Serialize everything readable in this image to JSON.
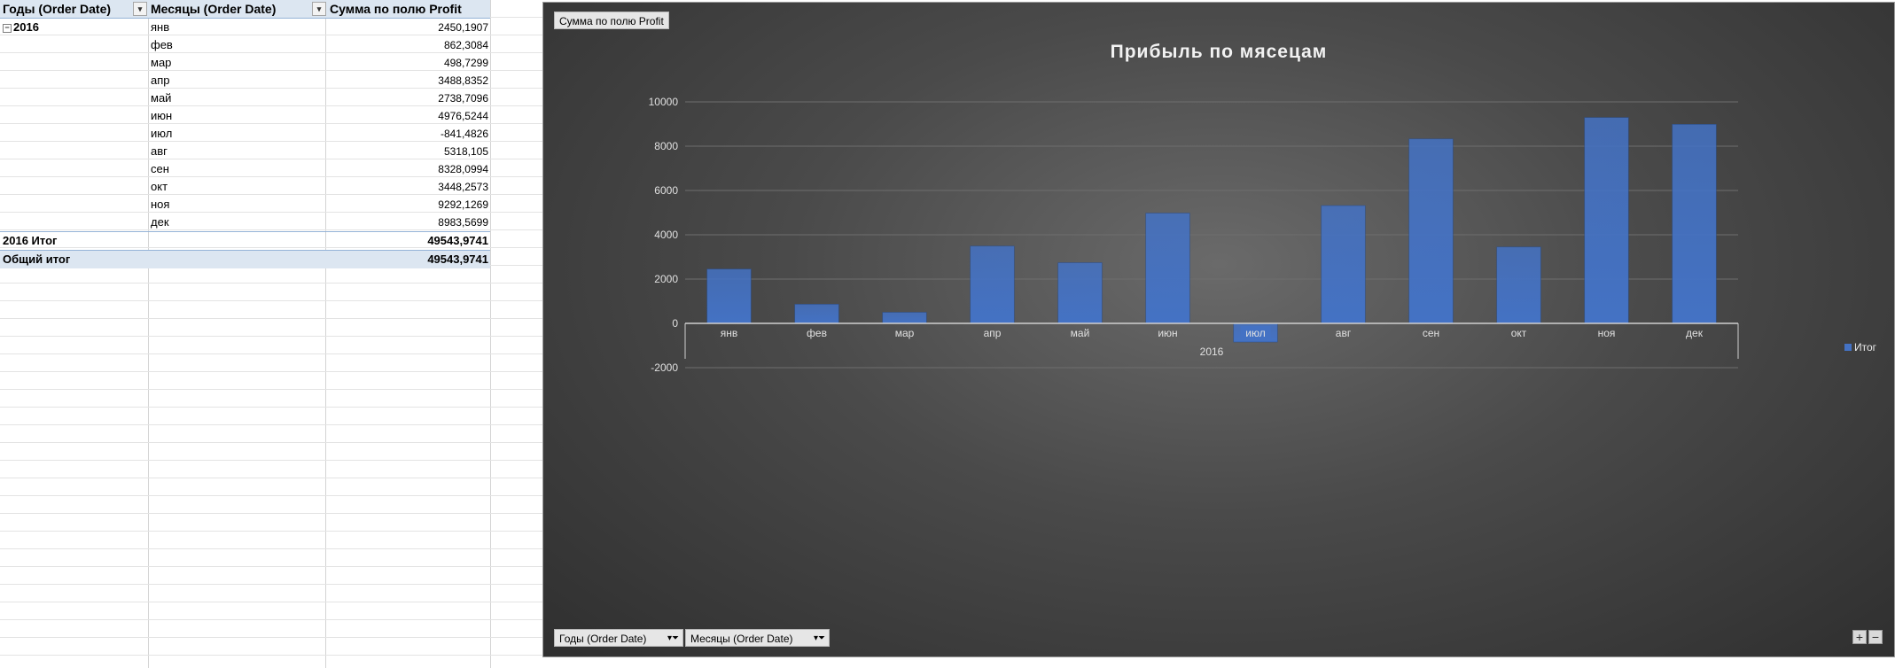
{
  "pivot": {
    "headers": {
      "years": "Годы (Order Date)",
      "months": "Месяцы (Order Date)",
      "sum": "Сумма по полю Profit"
    },
    "year": "2016",
    "rows": [
      {
        "month": "янв",
        "value": "2450,1907"
      },
      {
        "month": "фев",
        "value": "862,3084"
      },
      {
        "month": "мар",
        "value": "498,7299"
      },
      {
        "month": "апр",
        "value": "3488,8352"
      },
      {
        "month": "май",
        "value": "2738,7096"
      },
      {
        "month": "июн",
        "value": "4976,5244"
      },
      {
        "month": "июл",
        "value": "-841,4826"
      },
      {
        "month": "авг",
        "value": "5318,105"
      },
      {
        "month": "сен",
        "value": "8328,0994"
      },
      {
        "month": "окт",
        "value": "3448,2573"
      },
      {
        "month": "ноя",
        "value": "9292,1269"
      },
      {
        "month": "дек",
        "value": "8983,5699"
      }
    ],
    "year_total_label": "2016 Итог",
    "year_total_value": "49543,9741",
    "grand_total_label": "Общий итог",
    "grand_total_value": "49543,9741"
  },
  "chart_controls": {
    "value_field_button": "Сумма по полю Profit",
    "years_filter_button": "Годы (Order Date)",
    "months_filter_button": "Месяцы (Order Date)",
    "zoom_in": "+",
    "zoom_out": "−"
  },
  "colors": {
    "bar": "#4472c4",
    "chart_background": "#3c3c3c",
    "axis_text": "#e0e0e0"
  },
  "chart_data": {
    "type": "bar",
    "title": "Прибыль по мясецам",
    "categories": [
      "янв",
      "фев",
      "мар",
      "апр",
      "май",
      "июн",
      "июл",
      "авг",
      "сен",
      "окт",
      "ноя",
      "дек"
    ],
    "group_label": "2016",
    "series": [
      {
        "name": "Итог",
        "values": [
          2450.1907,
          862.3084,
          498.7299,
          3488.8352,
          2738.7096,
          4976.5244,
          -841.4826,
          5318.105,
          8328.0994,
          3448.2573,
          9292.1269,
          8983.5699
        ]
      }
    ],
    "ylim": [
      -2000,
      10000
    ],
    "yticks": [
      -2000,
      0,
      2000,
      4000,
      6000,
      8000,
      10000
    ],
    "grid": true,
    "legend": "right",
    "highlighted_category": "июл"
  }
}
